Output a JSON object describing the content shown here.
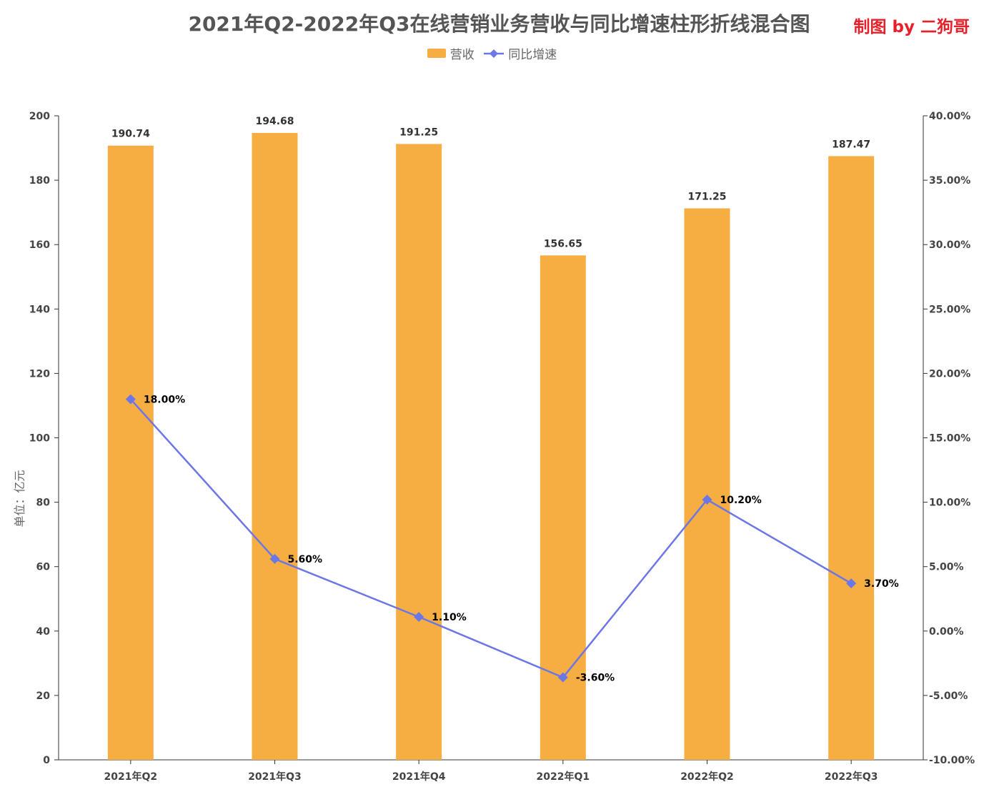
{
  "header": {
    "title": "2021年Q2-2022年Q3在线营销业务营收与同比增速柱形折线混合图",
    "credit": "制图 by 二狗哥"
  },
  "legend": {
    "bar_label": "营收",
    "line_label": "同比增速"
  },
  "colors": {
    "bar": "#f6ae42",
    "line": "#6c76e6"
  },
  "chart_data": {
    "type": "bar",
    "categories": [
      "2021年Q2",
      "2021年Q3",
      "2021年Q4",
      "2022年Q1",
      "2022年Q2",
      "2022年Q3"
    ],
    "series": [
      {
        "name": "营收",
        "type": "bar",
        "axis": "left",
        "values": [
          190.74,
          194.68,
          191.25,
          156.65,
          171.25,
          187.47
        ]
      },
      {
        "name": "同比增速",
        "type": "line",
        "axis": "right",
        "values": [
          18.0,
          5.6,
          1.1,
          -3.6,
          10.2,
          3.7
        ]
      }
    ],
    "ylabel": "单位：亿元",
    "ylim": [
      0,
      200
    ],
    "yticks": [
      0,
      20,
      40,
      60,
      80,
      100,
      120,
      140,
      160,
      180,
      200
    ],
    "y2lim": [
      -10,
      40
    ],
    "y2ticks": [
      "-10.00%",
      "-5.00%",
      "0.00%",
      "5.00%",
      "10.00%",
      "15.00%",
      "20.00%",
      "25.00%",
      "30.00%",
      "35.00%",
      "40.00%"
    ],
    "bar_labels": [
      "190.74",
      "194.68",
      "191.25",
      "156.65",
      "171.25",
      "187.47"
    ],
    "line_labels": [
      "18.00%",
      "5.60%",
      "1.10%",
      "-3.60%",
      "10.20%",
      "3.70%"
    ],
    "grid": false,
    "legend_position": "top-center"
  }
}
